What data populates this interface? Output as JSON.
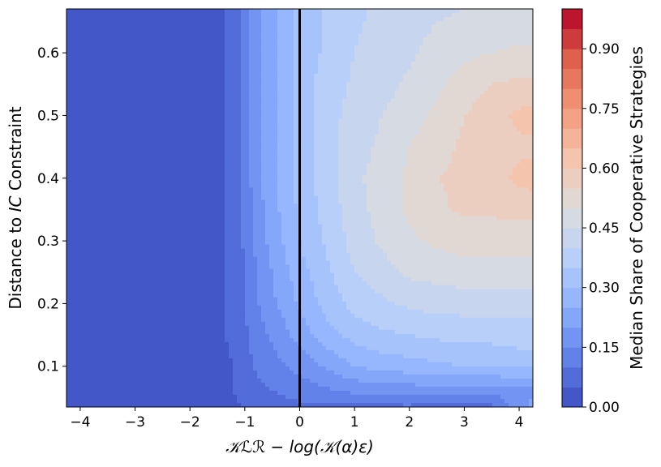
{
  "chart_data": {
    "type": "heatmap",
    "subtype": "filled-contour",
    "colormap": "coolwarm",
    "xlabel": "𝒦ℒℛ − log(𝒦(α)ε)",
    "ylabel_prefix": "Distance to ",
    "ylabel_italic": "IC",
    "ylabel_suffix": " Constraint",
    "colorbar_label": "Median Share of Cooperative Strategies",
    "xlim": [
      -4.25,
      4.25
    ],
    "ylim": [
      0.035,
      0.67
    ],
    "x_ticks": [
      -4,
      -3,
      -2,
      -1,
      0,
      1,
      2,
      3,
      4
    ],
    "x_tick_labels": [
      "−4",
      "−3",
      "−2",
      "−1",
      "0",
      "1",
      "2",
      "3",
      "4"
    ],
    "y_ticks": [
      0.1,
      0.2,
      0.3,
      0.4,
      0.5,
      0.6
    ],
    "y_tick_labels": [
      "0.1",
      "0.2",
      "0.3",
      "0.4",
      "0.5",
      "0.6"
    ],
    "colorbar_range": [
      0,
      1
    ],
    "colorbar_levels": 20,
    "colorbar_ticks": [
      0.0,
      0.15,
      0.3,
      0.45,
      0.6,
      0.75,
      0.9
    ],
    "colorbar_tick_labels": [
      "0.00",
      "0.15",
      "0.30",
      "0.45",
      "0.60",
      "0.75",
      "0.90"
    ],
    "vertical_line_x": 0,
    "grid": false,
    "x": [
      -4.25,
      -3.5,
      -2.5,
      -1.5,
      -1.2,
      -1.0,
      -0.75,
      -0.5,
      -0.25,
      0.0,
      0.25,
      0.5,
      0.75,
      1.0,
      1.5,
      2.0,
      2.5,
      3.0,
      3.5,
      4.0,
      4.25
    ],
    "y": [
      0.035,
      0.06,
      0.1,
      0.15,
      0.2,
      0.25,
      0.3,
      0.35,
      0.4,
      0.45,
      0.5,
      0.55,
      0.6,
      0.67
    ],
    "z": [
      [
        0.03,
        0.03,
        0.03,
        0.03,
        0.04,
        0.05,
        0.06,
        0.07,
        0.08,
        0.09,
        0.09,
        0.09,
        0.09,
        0.09,
        0.09,
        0.09,
        0.08,
        0.07,
        0.08,
        0.18,
        0.22
      ],
      [
        0.03,
        0.03,
        0.03,
        0.04,
        0.05,
        0.07,
        0.09,
        0.1,
        0.11,
        0.12,
        0.13,
        0.14,
        0.15,
        0.16,
        0.16,
        0.17,
        0.17,
        0.17,
        0.17,
        0.18,
        0.18
      ],
      [
        0.03,
        0.03,
        0.03,
        0.04,
        0.05,
        0.08,
        0.11,
        0.13,
        0.15,
        0.17,
        0.19,
        0.21,
        0.23,
        0.25,
        0.27,
        0.28,
        0.29,
        0.3,
        0.3,
        0.31,
        0.31
      ],
      [
        0.03,
        0.03,
        0.03,
        0.04,
        0.06,
        0.09,
        0.13,
        0.16,
        0.19,
        0.22,
        0.25,
        0.28,
        0.3,
        0.32,
        0.34,
        0.35,
        0.36,
        0.37,
        0.37,
        0.38,
        0.38
      ],
      [
        0.03,
        0.03,
        0.03,
        0.04,
        0.06,
        0.1,
        0.15,
        0.19,
        0.22,
        0.26,
        0.29,
        0.32,
        0.34,
        0.37,
        0.39,
        0.41,
        0.42,
        0.42,
        0.42,
        0.42,
        0.42
      ],
      [
        0.03,
        0.03,
        0.03,
        0.04,
        0.06,
        0.1,
        0.16,
        0.2,
        0.24,
        0.28,
        0.31,
        0.34,
        0.37,
        0.4,
        0.43,
        0.46,
        0.47,
        0.48,
        0.48,
        0.48,
        0.48
      ],
      [
        0.03,
        0.03,
        0.03,
        0.04,
        0.07,
        0.11,
        0.17,
        0.22,
        0.26,
        0.3,
        0.33,
        0.36,
        0.39,
        0.42,
        0.46,
        0.49,
        0.51,
        0.52,
        0.52,
        0.52,
        0.52
      ],
      [
        0.03,
        0.03,
        0.03,
        0.04,
        0.07,
        0.12,
        0.18,
        0.23,
        0.27,
        0.31,
        0.34,
        0.37,
        0.4,
        0.43,
        0.47,
        0.51,
        0.54,
        0.56,
        0.56,
        0.57,
        0.57
      ],
      [
        0.03,
        0.03,
        0.03,
        0.04,
        0.07,
        0.12,
        0.19,
        0.24,
        0.28,
        0.32,
        0.35,
        0.38,
        0.41,
        0.44,
        0.47,
        0.51,
        0.55,
        0.56,
        0.58,
        0.61,
        0.62
      ],
      [
        0.03,
        0.03,
        0.03,
        0.04,
        0.07,
        0.12,
        0.19,
        0.24,
        0.28,
        0.32,
        0.35,
        0.38,
        0.41,
        0.43,
        0.46,
        0.5,
        0.53,
        0.56,
        0.58,
        0.59,
        0.59
      ],
      [
        0.03,
        0.03,
        0.03,
        0.04,
        0.07,
        0.12,
        0.19,
        0.24,
        0.28,
        0.32,
        0.35,
        0.38,
        0.4,
        0.42,
        0.45,
        0.48,
        0.51,
        0.55,
        0.58,
        0.61,
        0.62
      ],
      [
        0.03,
        0.03,
        0.03,
        0.04,
        0.07,
        0.12,
        0.19,
        0.24,
        0.28,
        0.32,
        0.35,
        0.37,
        0.39,
        0.41,
        0.43,
        0.46,
        0.49,
        0.52,
        0.55,
        0.56,
        0.56
      ],
      [
        0.03,
        0.03,
        0.03,
        0.04,
        0.07,
        0.12,
        0.19,
        0.24,
        0.28,
        0.32,
        0.34,
        0.36,
        0.38,
        0.4,
        0.42,
        0.44,
        0.47,
        0.49,
        0.5,
        0.51,
        0.51
      ],
      [
        0.03,
        0.03,
        0.03,
        0.04,
        0.07,
        0.12,
        0.19,
        0.24,
        0.28,
        0.32,
        0.34,
        0.36,
        0.38,
        0.39,
        0.41,
        0.43,
        0.44,
        0.45,
        0.45,
        0.45,
        0.45
      ]
    ]
  }
}
